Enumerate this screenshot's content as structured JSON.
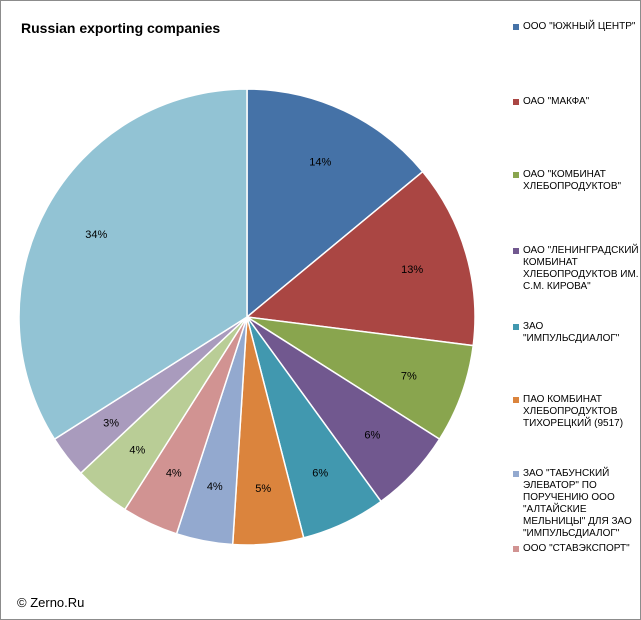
{
  "chart_data": {
    "type": "pie",
    "title": "Russian exporting companies",
    "legend_position": "right",
    "slices": [
      {
        "label": "ООО \"ЮЖНЫЙ ЦЕНТР\"",
        "value": 14,
        "value_label": "14%",
        "color": "#4572A7"
      },
      {
        "label": "ОАО \"МАКФА\"",
        "value": 13,
        "value_label": "13%",
        "color": "#AA4643"
      },
      {
        "label": "ОАО \"КОМБИНАТ ХЛЕБОПРОДУКТОВ\"",
        "value": 7,
        "value_label": "7%",
        "color": "#89A54E"
      },
      {
        "label": "ОАО \"ЛЕНИНГРАДСКИЙ КОМБИНАТ ХЛЕБОПРОДУКТОВ ИМ. С.М. КИРОВА\"",
        "value": 6,
        "value_label": "6%",
        "color": "#71588F"
      },
      {
        "label": "ЗАО \"ИМПУЛЬСДИАЛОГ\"",
        "value": 6,
        "value_label": "6%",
        "color": "#4198AF"
      },
      {
        "label": "ПАО КОМБИНАТ ХЛЕБОПРОДУКТОВ ТИХОРЕЦКИЙ (9517)",
        "value": 5,
        "value_label": "5%",
        "color": "#DB843D"
      },
      {
        "label": "ЗАО \"ТАБУНСКИЙ ЭЛЕВАТОР\" ПО ПОРУЧЕНИЮ ООО \"АЛТАЙСКИЕ МЕЛЬНИЦЫ\" ДЛЯ ЗАО \"ИМПУЛЬСДИАЛОГ\"",
        "value": 4,
        "value_label": "4%",
        "color": "#93A9CF"
      },
      {
        "label": "ООО \"СТАВЭКСПОРТ\"",
        "value": 4,
        "value_label": "4%",
        "color": "#D19392"
      },
      {
        "label": "",
        "value": 4,
        "value_label": "4%",
        "color": "#B9CD96"
      },
      {
        "label": "",
        "value": 3,
        "value_label": "3%",
        "color": "#A99BBD"
      },
      {
        "label": "",
        "value": 34,
        "value_label": "34%",
        "color": "#92C3D4"
      }
    ]
  },
  "footer": {
    "copyright": "© Zerno.Ru"
  }
}
